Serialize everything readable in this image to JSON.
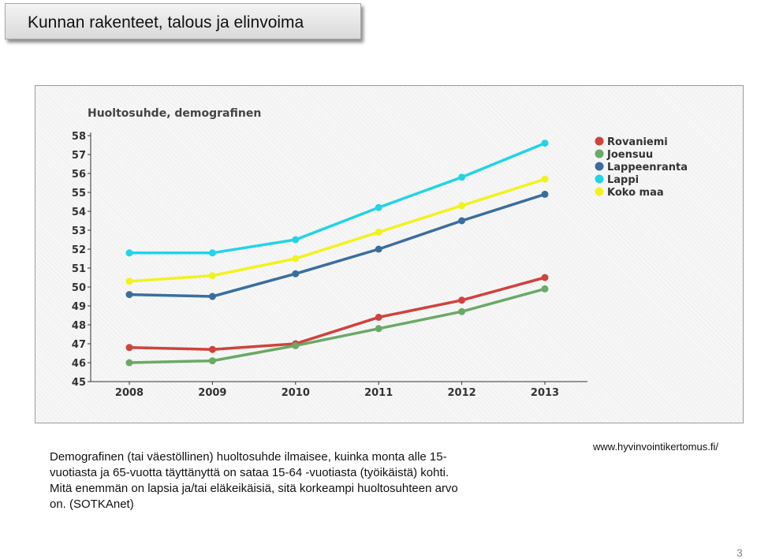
{
  "slide": {
    "title": "Kunnan rakenteet, talous ja elinvoima",
    "caption_lines": [
      "Demografinen (tai väestöllinen) huoltosuhde ilmaisee, kuinka monta alle 15-",
      "vuotiasta ja 65-vuotta täyttänyttä on sataa 15-64 -vuotiasta (työikäistä) kohti.",
      "Mitä enemmän on lapsia ja/tai eläkeikäisiä, sitä korkeampi huoltosuhteen arvo",
      "on. (SOTKAnet)"
    ],
    "source": "www.hyvinvointikertomus.fi/",
    "page_number": "3"
  },
  "chart_data": {
    "type": "line",
    "title": "Huoltosuhde, demografinen",
    "xlabel": "",
    "ylabel": "",
    "categories": [
      "2008",
      "2009",
      "2010",
      "2011",
      "2012",
      "2013"
    ],
    "ylim": [
      45,
      58
    ],
    "yticks": [
      "45",
      "46",
      "47",
      "48",
      "49",
      "50",
      "51",
      "52",
      "53",
      "54",
      "55",
      "56",
      "57",
      "58"
    ],
    "legend_position": "top-right",
    "series": [
      {
        "name": "Rovaniemi",
        "color": "#d0423d",
        "values": [
          46.8,
          46.7,
          47.0,
          48.4,
          49.3,
          50.5
        ]
      },
      {
        "name": "Joensuu",
        "color": "#6aa966",
        "values": [
          46.0,
          46.1,
          46.9,
          47.8,
          48.7,
          49.9
        ]
      },
      {
        "name": "Lappeenranta",
        "color": "#3b6e9e",
        "values": [
          49.6,
          49.5,
          50.7,
          52.0,
          53.5,
          54.9
        ]
      },
      {
        "name": "Lappi",
        "color": "#22d4e6",
        "values": [
          51.8,
          51.8,
          52.5,
          54.2,
          55.8,
          57.6
        ]
      },
      {
        "name": "Koko maa",
        "color": "#f2f21f",
        "values": [
          50.3,
          50.6,
          51.5,
          52.9,
          54.3,
          55.7
        ]
      }
    ]
  }
}
